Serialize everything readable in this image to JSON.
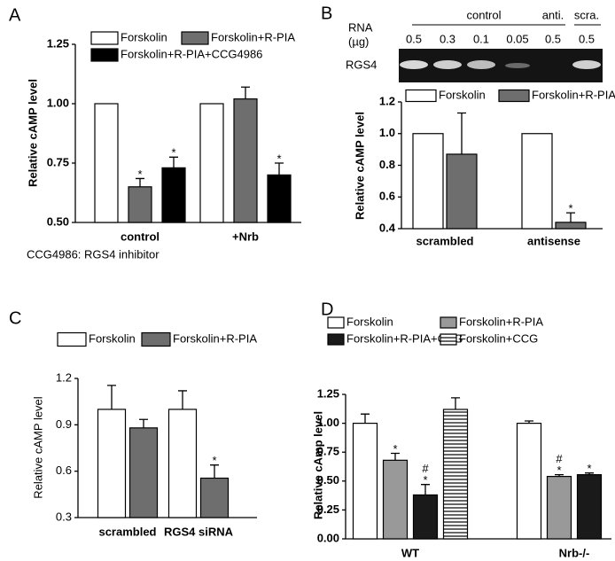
{
  "chart_data": [
    {
      "type": "bar",
      "panel": "A",
      "ylabel": "Relative cAMP level",
      "note": "CCG4986: RGS4 inhibitor",
      "categories": [
        "control",
        "+Nrb"
      ],
      "series": [
        {
          "name": "Forskolin",
          "color": "#ffffff",
          "values": [
            1.0,
            1.0
          ],
          "errors": [
            null,
            null
          ]
        },
        {
          "name": "Forskolin+R-PIA",
          "color": "#6e6e6e",
          "values": [
            0.65,
            1.02
          ],
          "errors": [
            0.035,
            0.05
          ]
        },
        {
          "name": "Forskolin+R-PIA+CCG4986",
          "color": "#000000",
          "values": [
            0.73,
            0.7
          ],
          "errors": [
            0.045,
            0.05
          ]
        }
      ],
      "annotations": [
        {
          "text": "*",
          "series": 1,
          "category": 0
        },
        {
          "text": "*",
          "series": 2,
          "category": 0
        },
        {
          "text": "*",
          "series": 2,
          "category": 1
        }
      ],
      "ylim": [
        0.5,
        1.25
      ],
      "yticks": [
        {
          "value": 0.5,
          "label": "0.50"
        },
        {
          "value": 0.75,
          "label": "0.75"
        },
        {
          "value": 1.0,
          "label": "1.00"
        },
        {
          "value": 1.25,
          "label": "1.25"
        }
      ]
    },
    {
      "type": "bar",
      "panel": "B",
      "ylabel": "Relative cAMP level",
      "gel": {
        "row_label": "RGS4",
        "axis_label": [
          "RNA",
          "(µg)"
        ],
        "groups": [
          "control",
          "anti.",
          "scra."
        ],
        "lanes": [
          0.5,
          0.3,
          0.1,
          0.05,
          0.5,
          0.5
        ]
      },
      "categories": [
        "scrambled",
        "antisense"
      ],
      "series": [
        {
          "name": "Forskolin",
          "color": "#ffffff",
          "values": [
            1.0,
            1.0
          ],
          "errors": [
            null,
            null
          ]
        },
        {
          "name": "Forskolin+R-PIA",
          "color": "#6e6e6e",
          "values": [
            0.87,
            0.44
          ],
          "errors": [
            0.26,
            0.06
          ]
        }
      ],
      "annotations": [
        {
          "text": "*",
          "series": 1,
          "category": 1
        }
      ],
      "ylim": [
        0.4,
        1.2
      ],
      "yticks": [
        0.4,
        0.6,
        0.8,
        {
          "value": 1.0,
          "label": "1.0"
        },
        1.2
      ]
    },
    {
      "type": "bar",
      "panel": "C",
      "ylabel": "Relative cAMP level",
      "categories": [
        "scrambled",
        "RGS4 siRNA"
      ],
      "series": [
        {
          "name": "Forskolin",
          "color": "#ffffff",
          "values": [
            1.0,
            1.0
          ],
          "errors": [
            0.155,
            0.12
          ]
        },
        {
          "name": "Forskolin+R-PIA",
          "color": "#6e6e6e",
          "values": [
            0.88,
            0.555
          ],
          "errors": [
            0.055,
            0.085
          ]
        }
      ],
      "annotations": [
        {
          "text": "*",
          "series": 1,
          "category": 1
        }
      ],
      "ylim": [
        0.3,
        1.2
      ],
      "yticks": [
        0.3,
        0.6,
        0.9,
        1.2
      ]
    },
    {
      "type": "bar",
      "panel": "D",
      "ylabel": "Relative cAmp level",
      "categories": [
        "WT",
        "Nrb-/-"
      ],
      "series": [
        {
          "name": "Forskolin",
          "color": "#ffffff",
          "values": [
            1.0,
            1.0
          ],
          "errors": [
            0.08,
            0.02
          ]
        },
        {
          "name": "Forskolin+R-PIA",
          "color": "#999999",
          "values": [
            0.68,
            0.54
          ],
          "errors": [
            0.06,
            0.015
          ]
        },
        {
          "name": "Forskolin+R-PIA+CCG",
          "color": "#1a1a1a",
          "values": [
            0.38,
            0.555
          ],
          "errors": [
            0.09,
            0.015
          ]
        },
        {
          "name": "Forskolin+CCG",
          "color": "#ffffff",
          "pattern": "horizontal-lines",
          "values": [
            1.12,
            null
          ],
          "errors": [
            0.1,
            null
          ]
        }
      ],
      "annotations": [
        {
          "text": "*",
          "series": 1,
          "category": 0
        },
        {
          "text": "*",
          "series": 2,
          "category": 0
        },
        {
          "text": "#",
          "series": 2,
          "category": 0
        },
        {
          "text": "*",
          "series": 1,
          "category": 1
        },
        {
          "text": "#",
          "series": 1,
          "category": 1
        },
        {
          "text": "*",
          "series": 2,
          "category": 1
        }
      ],
      "ylim": [
        0,
        1.25
      ],
      "yticks": [
        {
          "value": 0,
          "label": "0.00"
        },
        {
          "value": 0.25,
          "label": "0.25"
        },
        {
          "value": 0.5,
          "label": "0.50"
        },
        {
          "value": 0.75,
          "label": "0.75"
        },
        {
          "value": 1.0,
          "label": "1.00"
        },
        {
          "value": 1.25,
          "label": "1.25"
        }
      ]
    }
  ]
}
